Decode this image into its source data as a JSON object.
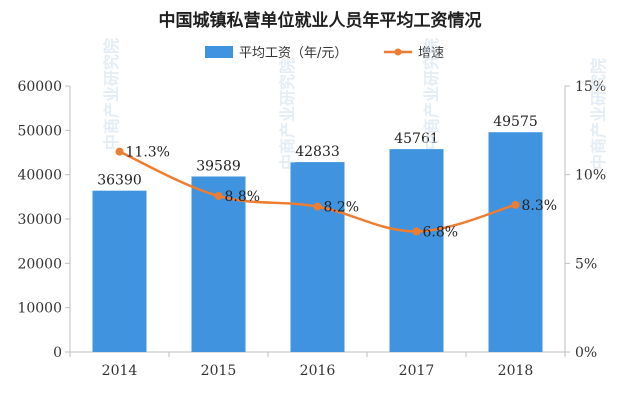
{
  "chart_data": {
    "type": "bar",
    "title": "中国城镇私营单位就业人员年平均工资情况",
    "categories": [
      "2014",
      "2015",
      "2016",
      "2017",
      "2018"
    ],
    "series": [
      {
        "name": "平均工资（年/元）",
        "type": "bar",
        "axis": "left",
        "values": [
          36390,
          39589,
          42833,
          45761,
          49575
        ],
        "labels": [
          "36390",
          "39589",
          "42833",
          "45761",
          "49575"
        ]
      },
      {
        "name": "增速",
        "type": "line",
        "axis": "right",
        "values": [
          11.3,
          8.8,
          8.2,
          6.8,
          8.3
        ],
        "labels": [
          "11.3%",
          "8.8%",
          "8.2%",
          "6.8%",
          "8.3%"
        ]
      }
    ],
    "ylim": [
      0,
      60000
    ],
    "y_ticks": [
      "0",
      "10000",
      "20000",
      "30000",
      "40000",
      "50000",
      "60000"
    ],
    "y2lim": [
      0,
      15
    ],
    "y2_ticks": [
      "0%",
      "5%",
      "10%",
      "15%"
    ],
    "legend_position": "top",
    "grid": false,
    "colors": {
      "bar": "#3f93df",
      "line": "#ed7d31",
      "axis": "#bfbfbf"
    }
  },
  "watermark": "中商产业研究院"
}
